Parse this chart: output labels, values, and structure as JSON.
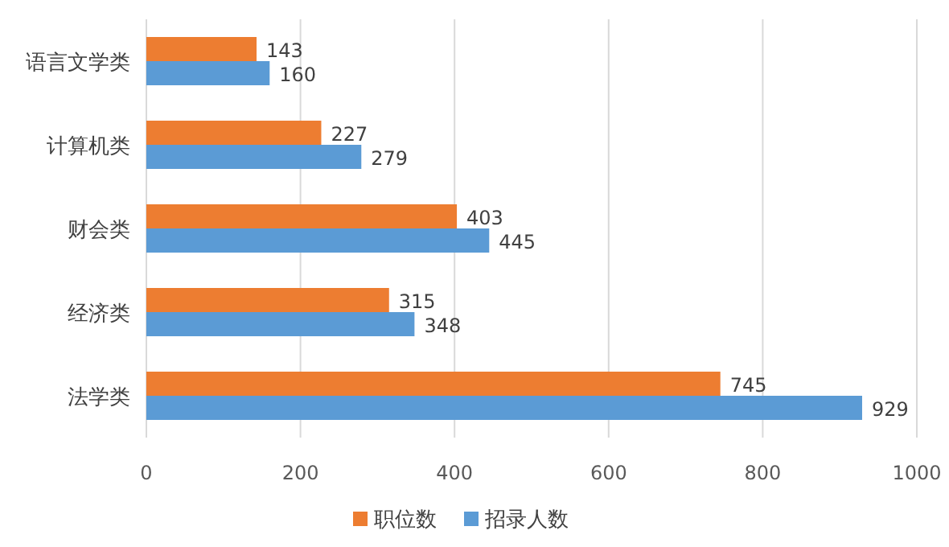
{
  "chart_data": {
    "type": "bar",
    "orientation": "horizontal",
    "categories": [
      "语言文学类",
      "计算机类",
      "财会类",
      "经济类",
      "法学类"
    ],
    "series": [
      {
        "name": "职位数",
        "color": "#ed7d31",
        "values": [
          143,
          227,
          403,
          315,
          745
        ]
      },
      {
        "name": "招录人数",
        "color": "#5b9bd5",
        "values": [
          160,
          279,
          445,
          348,
          929
        ]
      }
    ],
    "xlim": [
      0,
      1000
    ],
    "xticks": [
      0,
      200,
      400,
      600,
      800,
      1000
    ],
    "grid": "x",
    "legend": "bottom",
    "data_labels": true
  }
}
